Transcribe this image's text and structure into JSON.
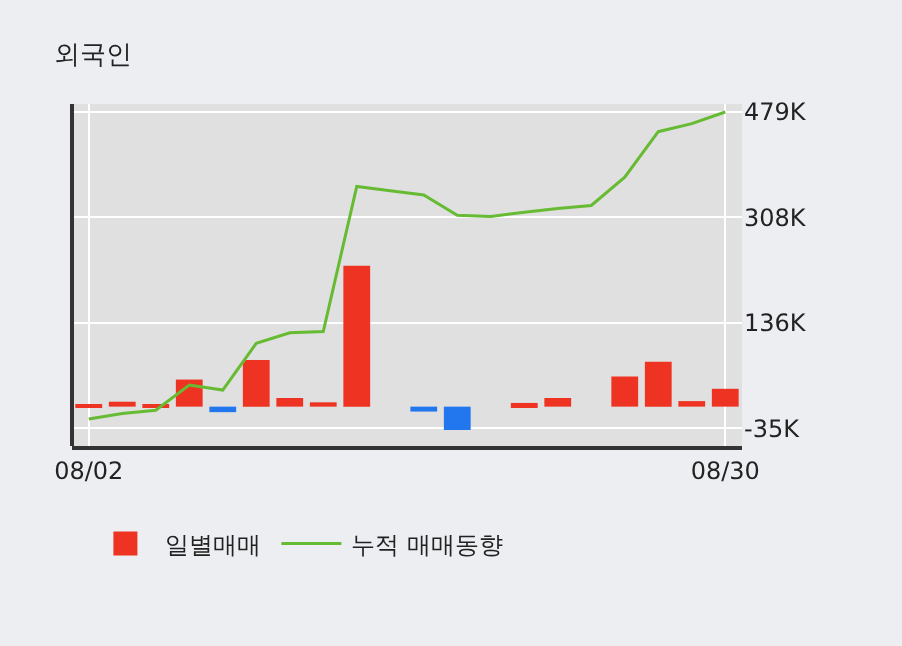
{
  "chart_data": {
    "type": "bar",
    "title": "외국인",
    "categories": [
      "08/02",
      null,
      null,
      null,
      null,
      null,
      null,
      null,
      null,
      null,
      null,
      null,
      null,
      null,
      null,
      null,
      null,
      null,
      null,
      "08/30"
    ],
    "series": [
      {
        "name": "일별매매",
        "colors": [
          "#ee3322",
          "#ee3322",
          "#ee3322",
          "#ee3322",
          "#2277ee",
          "#ee3322",
          "#ee3322",
          "#ee3322",
          "#ee3322",
          "#ee3322",
          "#2277ee",
          "#2277ee",
          "#ee3322",
          "#ee3322",
          "#ee3322",
          "#ee3322",
          "#ee3322",
          "#ee3322",
          "#ee3322",
          "#ee3322"
        ],
        "values": [
          2,
          8,
          4,
          44,
          -9,
          76,
          14,
          7,
          229,
          0,
          -8,
          -38,
          0,
          6,
          14,
          0,
          49,
          73,
          9,
          29
        ]
      },
      {
        "name": "누적 매매동향",
        "type": "line",
        "color": "#66bb33",
        "values": [
          -20,
          -11,
          -6,
          35,
          27,
          103,
          120,
          122,
          358,
          351,
          344,
          311,
          309,
          316,
          322,
          327,
          373,
          447,
          460,
          479
        ]
      }
    ],
    "ylim": [
      -64,
      492
    ],
    "yticks": [
      {
        "value": -35,
        "label": "-35K"
      },
      {
        "value": 136,
        "label": "136K"
      },
      {
        "value": 308,
        "label": "308K"
      },
      {
        "value": 479,
        "label": "479K"
      }
    ],
    "grid": true,
    "legend": "bottom"
  }
}
